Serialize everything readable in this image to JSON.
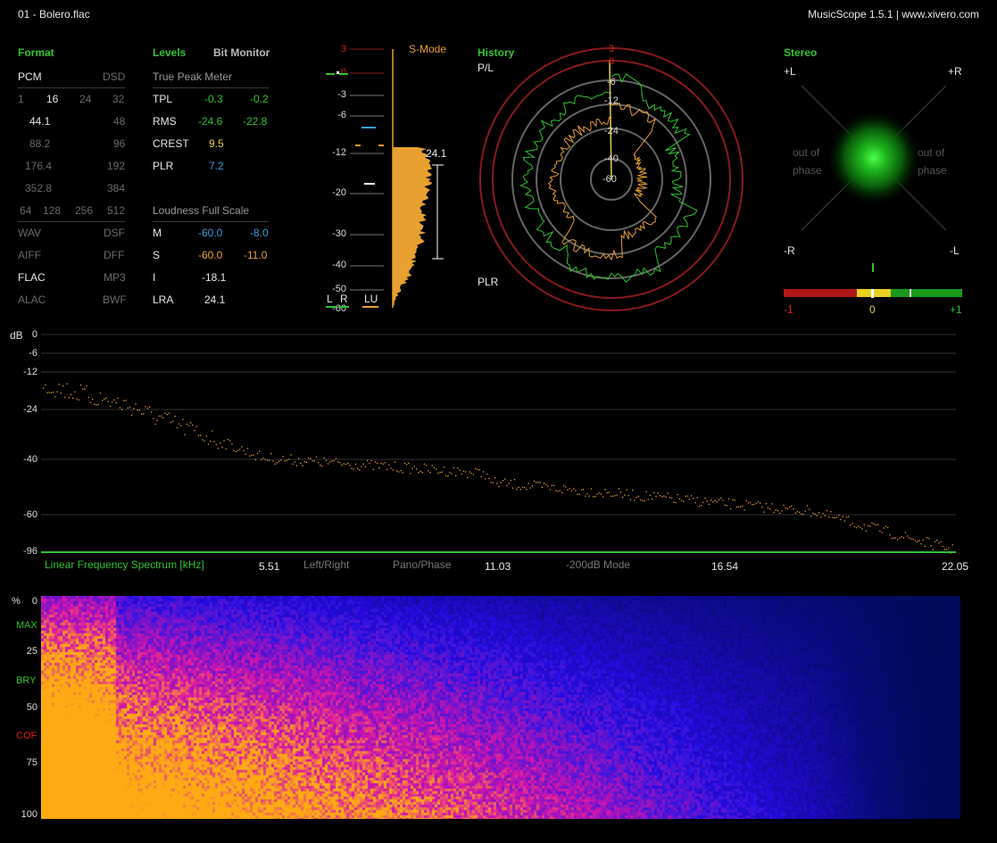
{
  "titlebar": {
    "file": "01 - Bolero.flac",
    "app": "MusicScope 1.5.1 | www.xivero.com"
  },
  "format": {
    "heading": "Format",
    "types": [
      "PCM",
      "DSD"
    ],
    "bits": [
      "1",
      "16",
      "24",
      "32"
    ],
    "rates_left": [
      "44.1",
      "88.2",
      "176.4",
      "352.8"
    ],
    "rates_right": [
      "48",
      "96",
      "192",
      "384"
    ],
    "dsd_rates": [
      "64",
      "128",
      "256",
      "512"
    ],
    "containers_left": [
      "WAV",
      "AIFF",
      "FLAC",
      "ALAC"
    ],
    "containers_right": [
      "DSF",
      "DFF",
      "MP3",
      "BWF"
    ]
  },
  "levels": {
    "heading": "Levels",
    "bit_monitor": "Bit Monitor",
    "true_peak_title": "True Peak Meter",
    "rows": [
      {
        "label": "TPL",
        "l": "-0.3",
        "r": "-0.2"
      },
      {
        "label": "RMS",
        "l": "-24.6",
        "r": "-22.8"
      },
      {
        "label": "CREST",
        "l": "9.5",
        "r": ""
      },
      {
        "label": "PLR",
        "l": "7.2",
        "r": ""
      }
    ],
    "loudness_title": "Loudness Full Scale",
    "loudness": [
      {
        "label": "M",
        "l": "-60.0",
        "r": "-8.0"
      },
      {
        "label": "S",
        "l": "-60.0",
        "r": "-11.0"
      },
      {
        "label": "I",
        "l": "-18.1",
        "r": ""
      },
      {
        "label": "LRA",
        "l": "24.1",
        "r": ""
      }
    ]
  },
  "meter": {
    "mode": "S-Mode",
    "scale": [
      "3",
      "0",
      "-3",
      "-6",
      "-12",
      "-20",
      "-30",
      "-40",
      "-50",
      "-60"
    ],
    "lra_value": "24.1",
    "bottom": [
      "L",
      "R",
      "LU"
    ]
  },
  "history": {
    "heading": "History",
    "top_label": "P/L",
    "bottom_label": "PLR",
    "rings": [
      "3",
      "0",
      "-6",
      "-12",
      "-24",
      "-40",
      "-60"
    ]
  },
  "stereo": {
    "heading": "Stereo",
    "tl": "+L",
    "tr": "+R",
    "bl": "-R",
    "br": "-L",
    "out_phase": [
      "out of",
      "phase"
    ],
    "bar_labels": [
      "-1",
      "0",
      "+1"
    ]
  },
  "spectrum": {
    "unit": "dB",
    "y_ticks": [
      "0",
      "-6",
      "-12",
      "-24",
      "-40",
      "-60",
      "-96"
    ],
    "title": "Linear Frequency Spectrum [kHz]",
    "x_ticks": [
      "5.51",
      "11.03",
      "16.54",
      "22.05"
    ],
    "modes": [
      "Left/Right",
      "Pano/Phase",
      "-200dB Mode"
    ]
  },
  "spectrogram": {
    "unit": "%",
    "ticks": [
      "0",
      "25",
      "50",
      "75",
      "100"
    ],
    "markers": [
      {
        "label": "MAX",
        "color": "#2fc42f"
      },
      {
        "label": "BRY",
        "color": "#2fc42f"
      },
      {
        "label": "COF",
        "color": "#e02020"
      }
    ]
  },
  "colors": {
    "accent_green": "#2fc42f",
    "orange": "#e8a030",
    "cyan": "#3aa0d8",
    "red": "#b01818"
  }
}
